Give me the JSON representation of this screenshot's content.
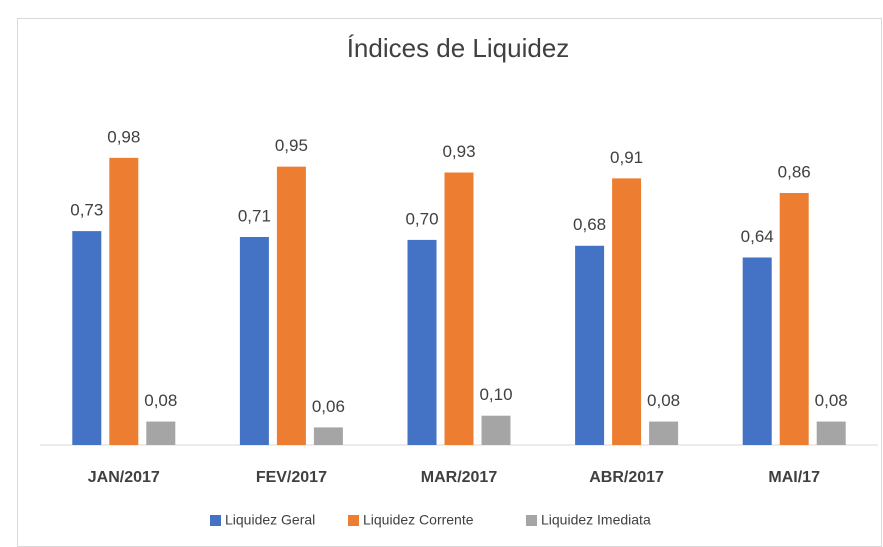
{
  "chart_data": {
    "type": "bar",
    "title": "Índices de Liquidez",
    "categories": [
      "JAN/2017",
      "FEV/2017",
      "MAR/2017",
      "ABR/2017",
      "MAI/17"
    ],
    "series": [
      {
        "name": "Liquidez Geral",
        "color": "#4472c4",
        "values": [
          0.73,
          0.71,
          0.7,
          0.68,
          0.64
        ],
        "value_labels": [
          "0,73",
          "0,71",
          "0,70",
          "0,68",
          "0,64"
        ]
      },
      {
        "name": "Liquidez Corrente",
        "color": "#ed7d31",
        "values": [
          0.98,
          0.95,
          0.93,
          0.91,
          0.86
        ],
        "value_labels": [
          "0,98",
          "0,95",
          "0,93",
          "0,91",
          "0,86"
        ]
      },
      {
        "name": "Liquidez Imediata",
        "color": "#a5a5a5",
        "values": [
          0.08,
          0.06,
          0.1,
          0.08,
          0.08
        ],
        "value_labels": [
          "0,08",
          "0,06",
          "0,10",
          "0,08",
          "0,08"
        ]
      }
    ],
    "ylim": [
      0,
      1
    ],
    "legend": "bottom"
  }
}
